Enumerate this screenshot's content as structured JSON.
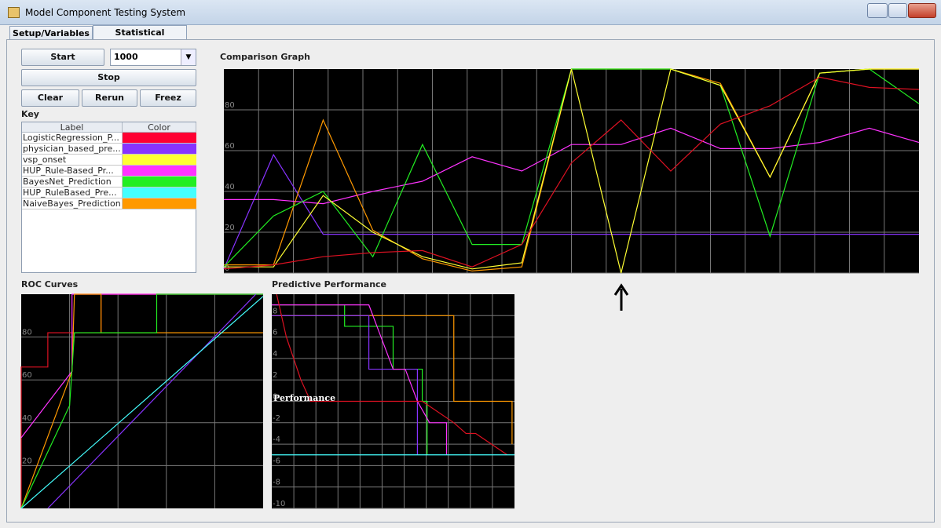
{
  "window": {
    "title": "Model Component Testing System"
  },
  "tabs": [
    "Setup/Variables",
    "Statistical Analysis"
  ],
  "controls": {
    "start": "Start",
    "count": "1000",
    "stop": "Stop",
    "clear": "Clear",
    "rerun": "Rerun",
    "freeze": "Freez"
  },
  "key": {
    "title": "Key",
    "headers": [
      "Label",
      "Color"
    ],
    "rows": [
      {
        "label": "LogisticRegression_P...",
        "color": "#ff0033"
      },
      {
        "label": "physician_based_pre...",
        "color": "#8833ff"
      },
      {
        "label": "vsp_onset",
        "color": "#ffff33"
      },
      {
        "label": "HUP_Rule-Based_Pr...",
        "color": "#ff33ff"
      },
      {
        "label": "BayesNet_Prediction",
        "color": "#22ee22"
      },
      {
        "label": "HUP_RuleBased_Pre...",
        "color": "#44ffff"
      },
      {
        "label": "NaiveBayes_Prediction",
        "color": "#ff9900"
      }
    ]
  },
  "chart_data": [
    {
      "type": "line",
      "title": "Comparison Graph",
      "ylim": [
        0,
        100
      ],
      "yticks": [
        0,
        20,
        40,
        60,
        80
      ],
      "grid": true,
      "series": [
        {
          "color": "#8833ff",
          "values": [
            2,
            58,
            19,
            19,
            19,
            19,
            19,
            19,
            19,
            19,
            19,
            19,
            19,
            19,
            19
          ]
        },
        {
          "color": "#ff33ff",
          "values": [
            36,
            36,
            34,
            40,
            45,
            57,
            50,
            63,
            63,
            71,
            61,
            61,
            64,
            71,
            64
          ]
        },
        {
          "color": "#ff9900",
          "values": [
            4,
            4,
            75,
            21,
            7,
            1,
            3,
            100,
            100,
            100,
            93,
            47,
            98,
            100,
            100
          ]
        },
        {
          "color": "#22ee22",
          "values": [
            3,
            28,
            40,
            8,
            63,
            14,
            14,
            100,
            100,
            100,
            92,
            18,
            98,
            100,
            83
          ]
        },
        {
          "color": "#ffff33",
          "values": [
            3,
            3,
            38,
            20,
            8,
            2,
            5,
            100,
            0,
            100,
            92,
            47,
            98,
            100,
            100
          ]
        },
        {
          "color": "#dd1122",
          "values": [
            2,
            4,
            8,
            10,
            11,
            3,
            14,
            54,
            75,
            50,
            73,
            82,
            96,
            91,
            90
          ]
        }
      ]
    },
    {
      "type": "line",
      "title": "ROC Curves",
      "xlim": [
        0,
        100
      ],
      "ylim": [
        0,
        100
      ],
      "yticks": [
        20,
        40,
        60,
        80
      ],
      "grid": true,
      "series": [
        {
          "color": "#dd1122",
          "x": [
            0,
            0,
            11,
            11,
            33,
            33,
            100
          ],
          "values": [
            0,
            66,
            66,
            82,
            82,
            100,
            100
          ]
        },
        {
          "color": "#ff33ff",
          "x": [
            0,
            21,
            21,
            100
          ],
          "values": [
            33,
            64,
            100,
            100
          ]
        },
        {
          "color": "#ff9900",
          "x": [
            0,
            21,
            22,
            33,
            33,
            100
          ],
          "values": [
            0,
            64,
            100,
            100,
            82,
            82
          ]
        },
        {
          "color": "#22ee22",
          "x": [
            0,
            20,
            22,
            56,
            56,
            100
          ],
          "values": [
            0,
            48,
            82,
            82,
            100,
            100
          ]
        },
        {
          "color": "#8833ff",
          "x": [
            11,
            97
          ],
          "values": [
            0,
            100
          ]
        },
        {
          "color": "#44ffff",
          "x": [
            0,
            100
          ],
          "values": [
            0,
            99
          ]
        }
      ]
    },
    {
      "type": "line",
      "title": "Predictive Performance",
      "annotation": "Performance",
      "xlim": [
        0,
        100
      ],
      "ylim": [
        -10,
        10
      ],
      "yticks": [
        -10,
        -8,
        -6,
        -4,
        -2,
        0,
        2,
        4,
        6,
        8
      ],
      "grid": true,
      "series": [
        {
          "color": "#ff9900",
          "x": [
            0,
            75,
            75,
            99,
            99
          ],
          "values": [
            8,
            8,
            0,
            0,
            -4
          ]
        },
        {
          "color": "#22ee22",
          "x": [
            0,
            30,
            30,
            50,
            50,
            62,
            62,
            64,
            64
          ],
          "values": [
            9,
            9,
            7,
            7,
            3,
            3,
            0,
            0,
            -5
          ]
        },
        {
          "color": "#8833ff",
          "x": [
            0,
            40,
            40,
            60,
            60
          ],
          "values": [
            8,
            8,
            3,
            3,
            -5
          ]
        },
        {
          "color": "#ff33ff",
          "x": [
            0,
            40,
            45,
            50,
            55,
            60,
            65,
            72,
            72
          ],
          "values": [
            9,
            9,
            6,
            3,
            3,
            0,
            -2,
            -2,
            -5
          ]
        },
        {
          "color": "#dd1122",
          "x": [
            2,
            6,
            12,
            16,
            62,
            75,
            80,
            84,
            97
          ],
          "values": [
            10,
            6,
            2,
            0,
            0,
            -2,
            -3,
            -3,
            -5
          ]
        },
        {
          "color": "#44ffff",
          "x": [
            0,
            100
          ],
          "values": [
            -5,
            -5
          ]
        }
      ]
    }
  ]
}
